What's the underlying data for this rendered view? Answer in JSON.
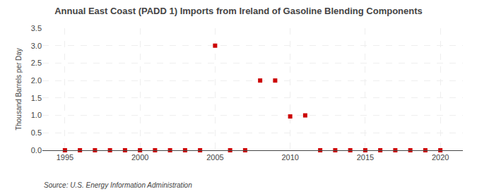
{
  "chart_data": {
    "type": "scatter",
    "title": "Annual East Coast (PADD 1) Imports from Ireland of Gasoline Blending Components",
    "ylabel": "Thousand Barrels per Day",
    "annotations": [
      "Source: U.S. Energy Information Administration"
    ],
    "x": [
      1995,
      1996,
      1997,
      1998,
      1999,
      2000,
      2001,
      2002,
      2003,
      2004,
      2005,
      2006,
      2007,
      2008,
      2009,
      2010,
      2011,
      2012,
      2013,
      2014,
      2015,
      2016,
      2017,
      2018,
      2019,
      2020
    ],
    "values": [
      0.0,
      0.0,
      0.0,
      0.0,
      0.0,
      0.0,
      0.0,
      0.0,
      0.0,
      0.0,
      3.0,
      0.0,
      0.0,
      2.0,
      2.0,
      0.97,
      1.0,
      0.0,
      0.0,
      0.0,
      0.0,
      0.0,
      0.0,
      0.0,
      0.0,
      0.0
    ],
    "color": "#cc0000",
    "marker": "square",
    "xlim": [
      1993.5,
      2021.5
    ],
    "xticks": [
      1995,
      2000,
      2005,
      2010,
      2015,
      2020
    ],
    "ylim": [
      0,
      3.5
    ],
    "yticks": [
      {
        "value": 0.0,
        "label": "0.0"
      },
      0.5,
      {
        "value": 1.0,
        "label": "1.0"
      },
      1.5,
      {
        "value": 2.0,
        "label": "2.0"
      },
      2.5,
      {
        "value": 3.0,
        "label": "3.0"
      },
      3.5
    ],
    "grid": true
  }
}
